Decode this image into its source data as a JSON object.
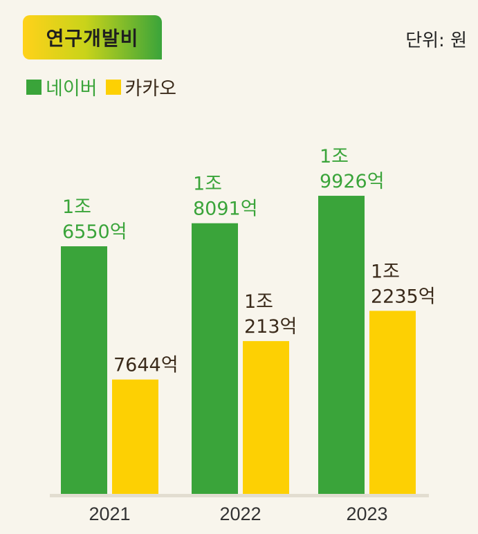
{
  "header": {
    "title": "연구개발비",
    "unit": "단위: 원"
  },
  "colors": {
    "naver": "#3aa43a",
    "kakao": "#fdd003",
    "naver_text": "#3aa43a",
    "kakao_text": "#3a2a1a"
  },
  "chart_data": {
    "type": "bar",
    "title": "연구개발비",
    "unit": "단위: 원",
    "categories": [
      "2021",
      "2022",
      "2023"
    ],
    "series": [
      {
        "name": "네이버",
        "values": [
          16550,
          18091,
          19926
        ],
        "labels": [
          [
            "1조",
            "6550억"
          ],
          [
            "1조",
            "8091억"
          ],
          [
            "1조",
            "9926억"
          ]
        ]
      },
      {
        "name": "카카오",
        "values": [
          7644,
          10213,
          12235
        ],
        "labels": [
          [
            "7644억"
          ],
          [
            "1조",
            "213억"
          ],
          [
            "1조",
            "2235억"
          ]
        ]
      }
    ],
    "value_unit": "억원",
    "ylim": [
      0,
      25800
    ],
    "grid": false,
    "legend_position": "top-left"
  }
}
